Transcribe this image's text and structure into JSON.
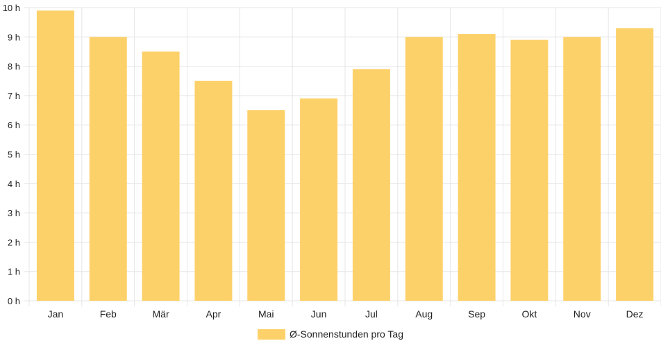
{
  "chart_data": {
    "type": "bar",
    "categories": [
      "Jan",
      "Feb",
      "Mär",
      "Apr",
      "Mai",
      "Jun",
      "Jul",
      "Aug",
      "Sep",
      "Okt",
      "Nov",
      "Dez"
    ],
    "series": [
      {
        "name": "Ø-Sonnenstunden pro Tag",
        "values": [
          9.9,
          9.0,
          8.5,
          7.5,
          6.5,
          6.9,
          7.9,
          9.0,
          9.1,
          8.9,
          9.0,
          9.3
        ],
        "color": "#fdd16a"
      }
    ],
    "ylim": [
      0,
      10
    ],
    "yticks": [
      0,
      1,
      2,
      3,
      4,
      5,
      6,
      7,
      8,
      9,
      10
    ],
    "ytick_suffix": " h",
    "grid": true,
    "legend_position": "bottom"
  }
}
